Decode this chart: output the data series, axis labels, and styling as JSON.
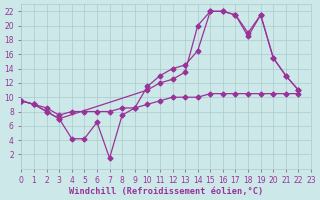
{
  "bg_color": "#cce8e8",
  "line_color": "#993399",
  "grid_color": "#aacccc",
  "xlabel": "Windchill (Refroidissement éolien,°C)",
  "xlabel_color": "#993399",
  "xlim": [
    0,
    23
  ],
  "ylim": [
    0,
    23
  ],
  "xticks": [
    0,
    1,
    2,
    3,
    4,
    5,
    6,
    7,
    8,
    9,
    10,
    11,
    12,
    13,
    14,
    15,
    16,
    17,
    18,
    19,
    20,
    21,
    22,
    23
  ],
  "yticks": [
    2,
    4,
    6,
    8,
    10,
    12,
    14,
    16,
    18,
    20,
    22
  ],
  "line1_x": [
    0,
    1,
    2,
    3,
    4,
    5,
    6,
    7,
    8,
    9,
    10,
    11,
    12,
    13,
    14,
    15,
    16,
    17,
    18,
    19,
    20,
    21,
    22
  ],
  "line1_y": [
    9.5,
    9.0,
    8.0,
    7.0,
    4.2,
    4.2,
    6.5,
    1.5,
    7.5,
    8.5,
    11.5,
    13.0,
    14.0,
    14.5,
    16.5,
    22.0,
    22.0,
    21.5,
    19.0,
    21.5,
    15.5,
    13.0,
    11.0
  ],
  "line2_x": [
    0,
    1,
    2,
    3,
    10,
    11,
    12,
    13,
    14,
    15,
    16,
    17,
    18,
    19,
    20,
    21,
    22
  ],
  "line2_y": [
    9.5,
    9.0,
    8.0,
    7.0,
    11.0,
    12.0,
    12.5,
    13.5,
    20.0,
    22.0,
    22.0,
    21.5,
    18.5,
    21.5,
    15.5,
    13.0,
    11.0
  ],
  "line3_x": [
    0,
    1,
    2,
    3,
    4,
    5,
    6,
    7,
    8,
    9,
    10,
    11,
    12,
    13,
    14,
    15,
    16,
    17,
    18,
    19,
    20,
    21,
    22
  ],
  "line3_y": [
    9.5,
    9.0,
    8.5,
    7.5,
    8.0,
    8.0,
    8.0,
    8.0,
    8.5,
    8.5,
    9.0,
    9.5,
    10.0,
    10.0,
    10.0,
    10.5,
    10.5,
    10.5,
    10.5,
    10.5,
    10.5,
    10.5,
    10.5
  ],
  "marker": "D",
  "marker_size": 2.5,
  "linewidth": 0.9,
  "tick_fontsize": 5.5,
  "xlabel_fontsize": 6.2
}
